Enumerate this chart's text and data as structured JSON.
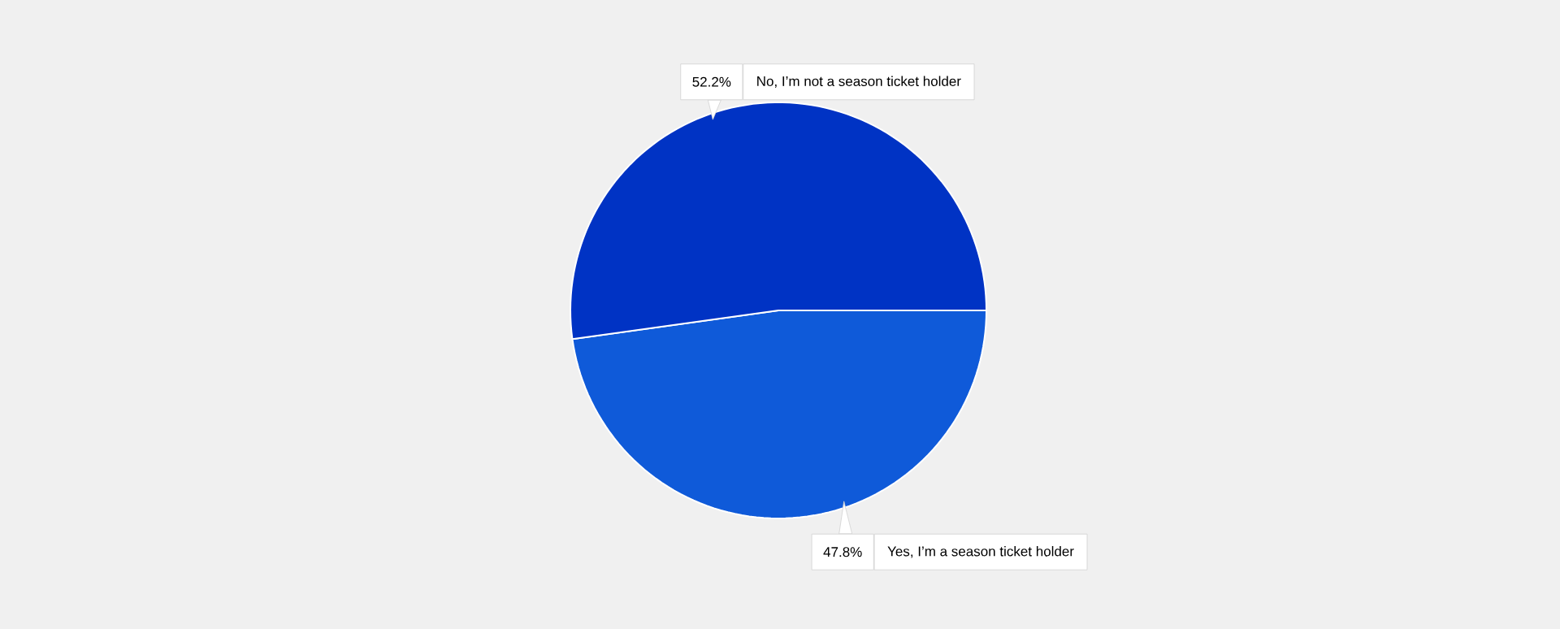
{
  "chart_data": {
    "type": "pie",
    "categories": [
      "Yes, I’m a season ticket holder",
      "No, I’m not a season ticket holder"
    ],
    "values": [
      47.8,
      52.2
    ],
    "colors": [
      "#0f5ad9",
      "#0033c4"
    ],
    "value_labels": [
      "47.8%",
      "52.2%"
    ]
  }
}
